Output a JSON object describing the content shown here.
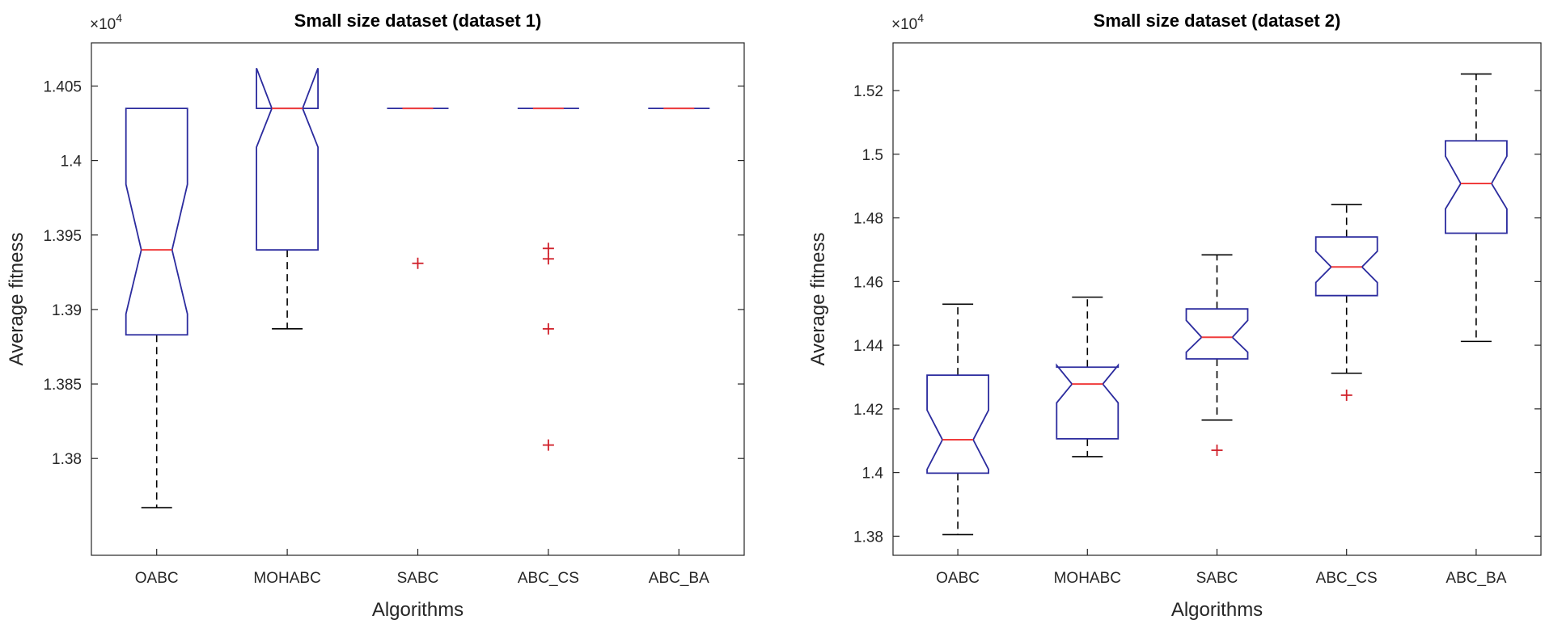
{
  "chart_data": [
    {
      "type": "boxplot",
      "title": "Small size dataset (dataset 1)",
      "xlabel": "Algorithms",
      "ylabel": "Average fitness",
      "y_exponent_label": "×10",
      "y_exponent_power": "4",
      "ylim": [
        1.3735,
        1.4079
      ],
      "yticks": [
        1.38,
        1.385,
        1.39,
        1.395,
        1.4,
        1.405
      ],
      "ytick_labels": [
        "1.38",
        "1.385",
        "1.39",
        "1.395",
        "1.4",
        "1.405"
      ],
      "categories": [
        "OABC",
        "MOHABC",
        "SABC",
        "ABC_CS",
        "ABC_BA"
      ],
      "boxes": [
        {
          "min": 1.3767,
          "q1": 1.3883,
          "median": 1.394,
          "q3": 1.4035,
          "max": 1.4035,
          "notch_lo": 1.3897,
          "notch_hi": 1.3984,
          "outliers": []
        },
        {
          "min": 1.3887,
          "q1": 1.394,
          "median": 1.4035,
          "q3": 1.4035,
          "max": 1.4035,
          "notch_lo": 1.4009,
          "notch_hi": 1.4062,
          "outliers": []
        },
        {
          "min": 1.4035,
          "q1": 1.4035,
          "median": 1.4035,
          "q3": 1.4035,
          "max": 1.4035,
          "notch_lo": 1.4035,
          "notch_hi": 1.4035,
          "outliers": [
            1.3931
          ]
        },
        {
          "min": 1.4035,
          "q1": 1.4035,
          "median": 1.4035,
          "q3": 1.4035,
          "max": 1.4035,
          "notch_lo": 1.4035,
          "notch_hi": 1.4035,
          "outliers": [
            1.3941,
            1.3934,
            1.3887,
            1.3809
          ]
        },
        {
          "min": 1.4035,
          "q1": 1.4035,
          "median": 1.4035,
          "q3": 1.4035,
          "max": 1.4035,
          "notch_lo": 1.4035,
          "notch_hi": 1.4035,
          "outliers": []
        }
      ]
    },
    {
      "type": "boxplot",
      "title": "Small size dataset (dataset 2)",
      "xlabel": "Algorithms",
      "ylabel": "Average fitness",
      "y_exponent_label": "×10",
      "y_exponent_power": "4",
      "ylim": [
        1.374,
        1.535
      ],
      "yticks": [
        1.38,
        1.4,
        1.42,
        1.44,
        1.46,
        1.48,
        1.5,
        1.52
      ],
      "ytick_labels": [
        "1.38",
        "1.4",
        "1.42",
        "1.44",
        "1.46",
        "1.48",
        "1.5",
        "1.52"
      ],
      "categories": [
        "OABC",
        "MOHABC",
        "SABC",
        "ABC_CS",
        "ABC_BA"
      ],
      "boxes": [
        {
          "min": 1.3805,
          "q1": 1.3998,
          "median": 1.4103,
          "q3": 1.4306,
          "max": 1.4529,
          "notch_lo": 1.401,
          "notch_hi": 1.4196,
          "outliers": []
        },
        {
          "min": 1.405,
          "q1": 1.4106,
          "median": 1.4278,
          "q3": 1.4331,
          "max": 1.4551,
          "notch_lo": 1.4219,
          "notch_hi": 1.4337,
          "outliers": []
        },
        {
          "min": 1.4165,
          "q1": 1.4357,
          "median": 1.4425,
          "q3": 1.4514,
          "max": 1.4684,
          "notch_lo": 1.4378,
          "notch_hi": 1.4478,
          "outliers": [
            1.407
          ]
        },
        {
          "min": 1.4312,
          "q1": 1.4556,
          "median": 1.4646,
          "q3": 1.474,
          "max": 1.4842,
          "notch_lo": 1.4597,
          "notch_hi": 1.4695,
          "outliers": [
            1.4243
          ]
        },
        {
          "min": 1.4412,
          "q1": 1.4752,
          "median": 1.4908,
          "q3": 1.5042,
          "max": 1.5252,
          "notch_lo": 1.4828,
          "notch_hi": 1.4994,
          "outliers": []
        }
      ]
    }
  ]
}
